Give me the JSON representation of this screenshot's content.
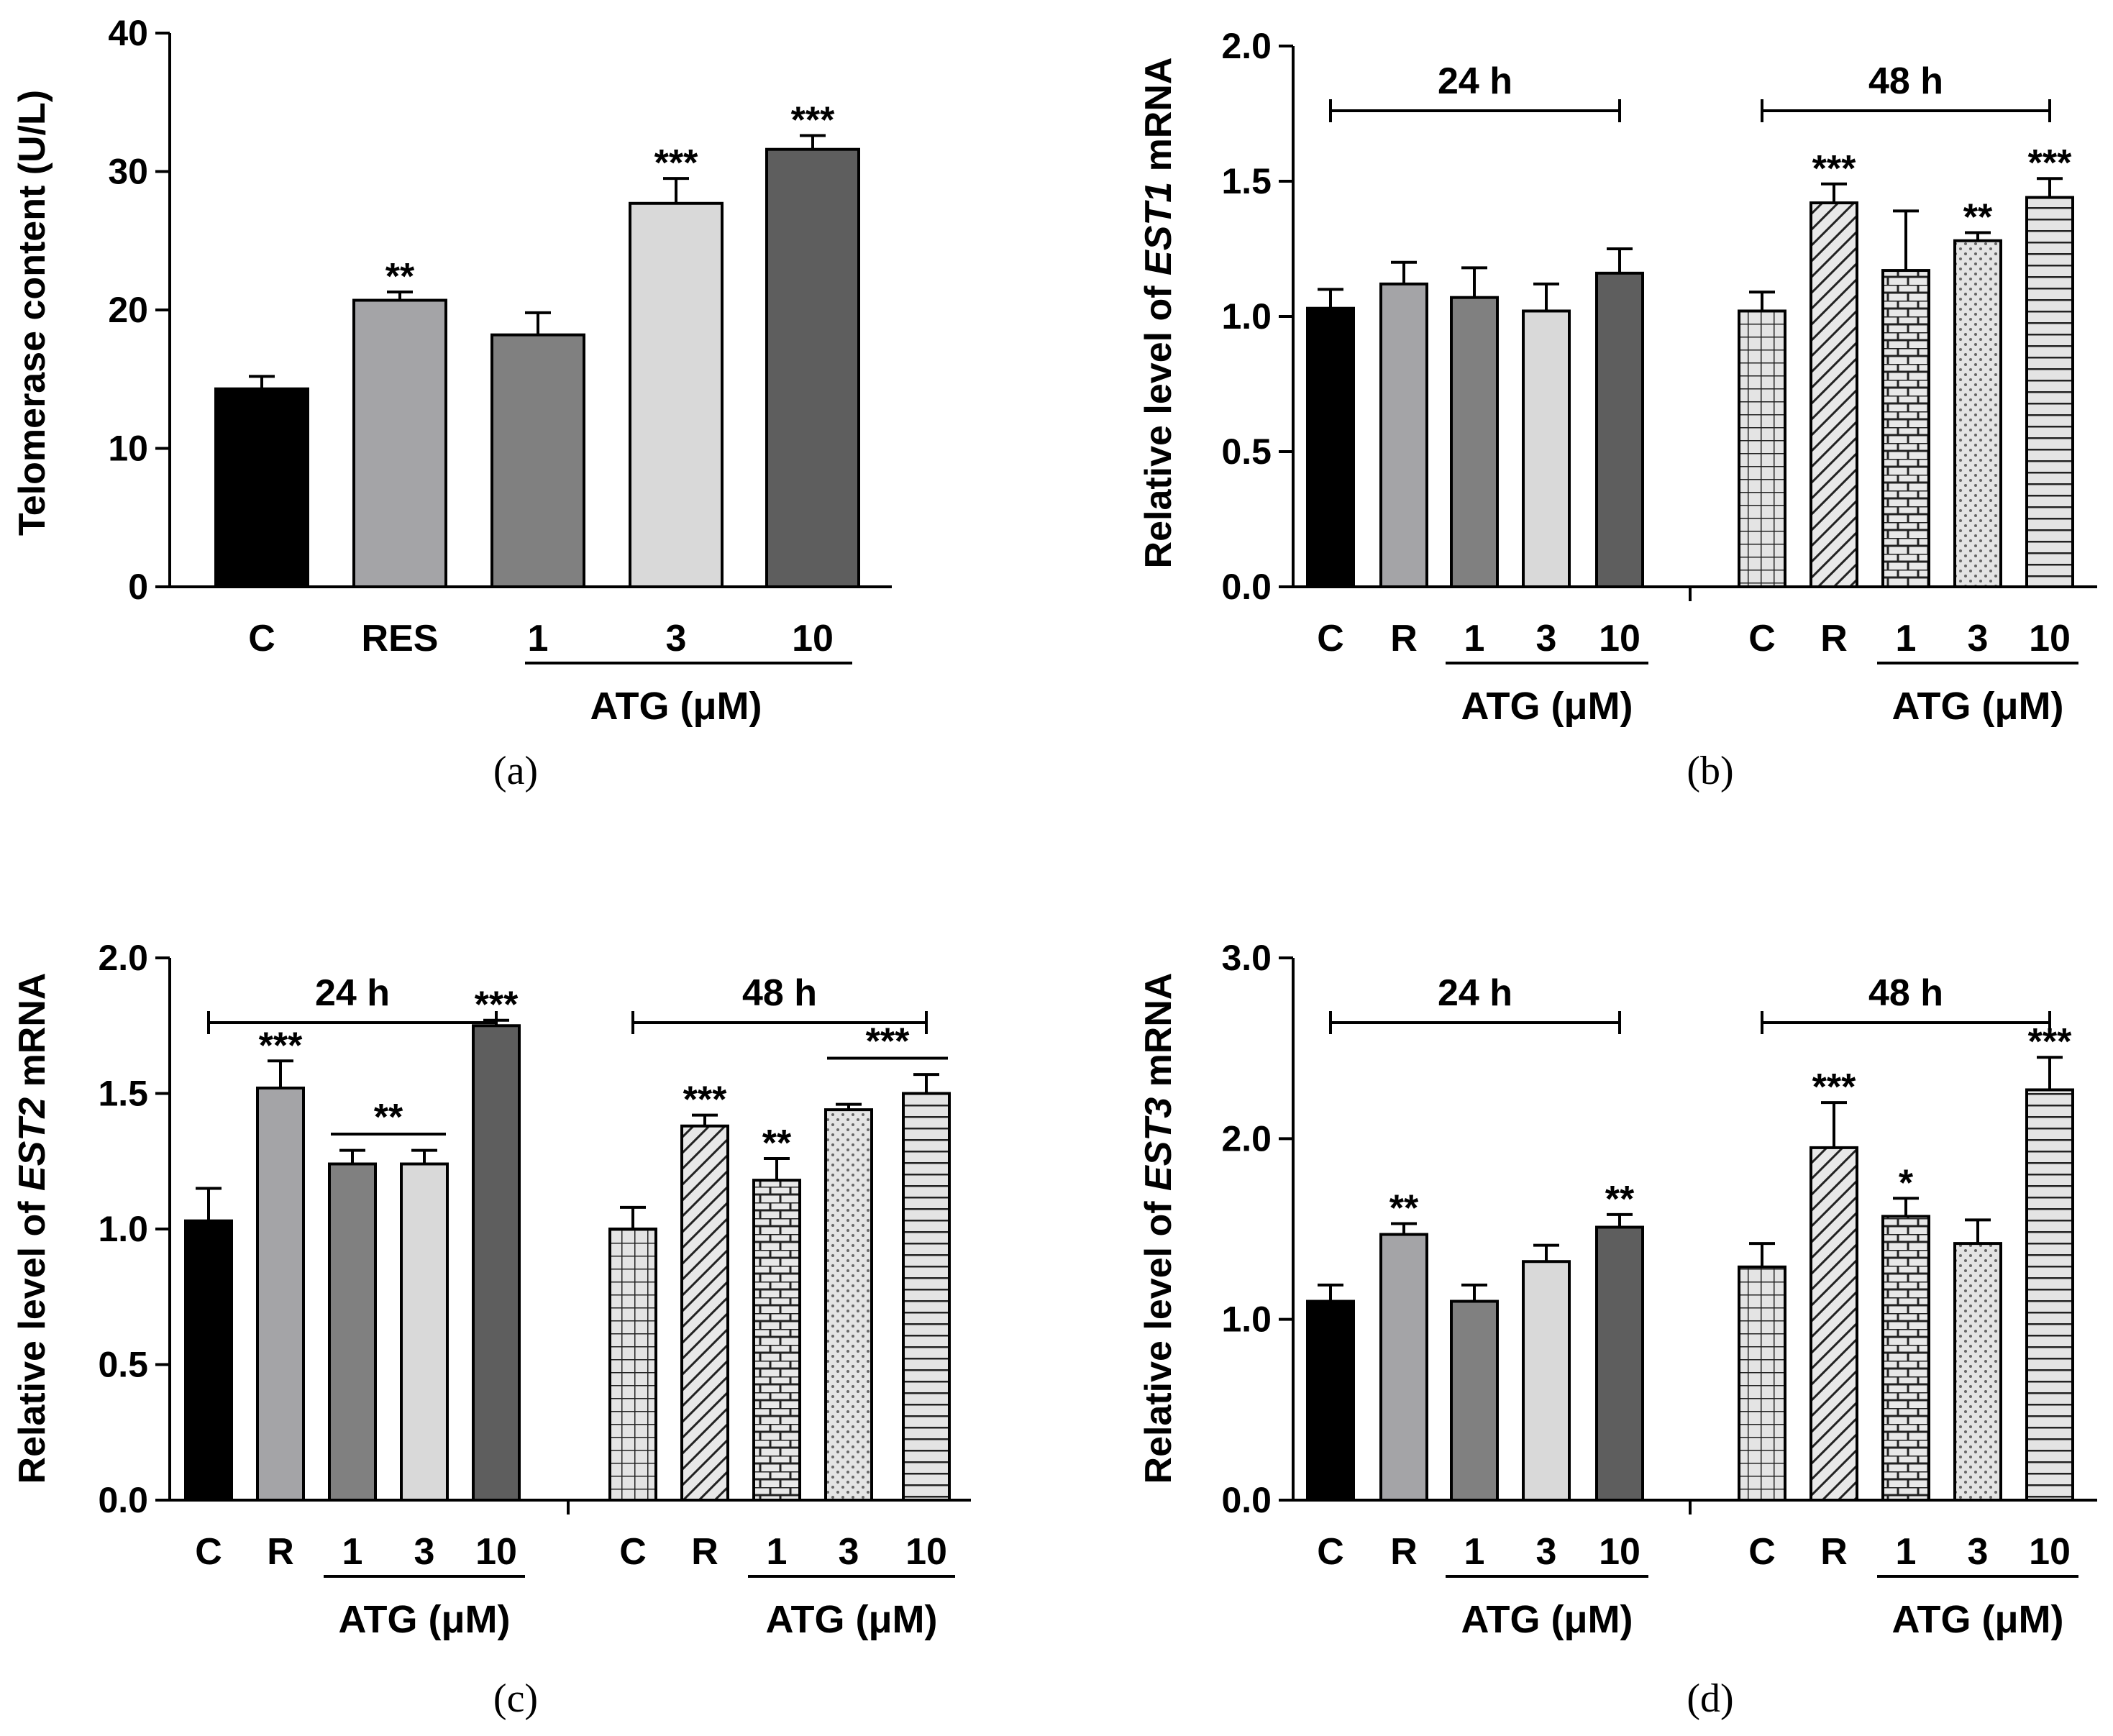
{
  "chart_data": [
    {
      "panel": "(a)",
      "type": "bar",
      "ylabel": "Telomerase content  (U/L)",
      "ylim": [
        0,
        40
      ],
      "yticks": [
        "0",
        "10",
        "20",
        "30",
        "40"
      ],
      "categories": [
        "C",
        "RES",
        "1",
        "3",
        "10"
      ],
      "values": [
        14.3,
        20.7,
        18.2,
        27.7,
        31.6
      ],
      "errors": [
        0.9,
        0.6,
        1.6,
        1.8,
        1.0
      ],
      "significance": [
        "",
        "**",
        "",
        "***",
        "***"
      ],
      "fills": [
        "#000000",
        "#a4a4a7",
        "#808080",
        "#d9d9d9",
        "#5e5e5e"
      ],
      "atg_label": "ATG (μM)"
    },
    {
      "panel": "(b)",
      "type": "bar",
      "ylabel_prefix": "Relative level of ",
      "ylabel_gene": "EST1",
      "ylabel_suffix": " mRNA",
      "ylim": [
        0,
        2.0
      ],
      "yticks": [
        "0.0",
        "0.5",
        "1.0",
        "1.5",
        "2.0"
      ],
      "groups": [
        {
          "label": "24 h",
          "categories": [
            "C",
            "R",
            "1",
            "3",
            "10"
          ],
          "values": [
            1.03,
            1.12,
            1.07,
            1.02,
            1.16
          ],
          "errors": [
            0.07,
            0.08,
            0.11,
            0.1,
            0.09
          ],
          "significance": [
            "",
            "",
            "",
            "",
            ""
          ],
          "atg_label": "ATG (μM)"
        },
        {
          "label": "48 h",
          "categories": [
            "C",
            "R",
            "1",
            "3",
            "10"
          ],
          "values": [
            1.02,
            1.42,
            1.17,
            1.28,
            1.44
          ],
          "errors": [
            0.07,
            0.07,
            0.22,
            0.03,
            0.07
          ],
          "significance": [
            "",
            "***",
            "",
            "**",
            "***"
          ],
          "atg_label": "ATG (μM)"
        }
      ]
    },
    {
      "panel": "(c)",
      "type": "bar",
      "ylabel_prefix": "Relative level of ",
      "ylabel_gene": "EST2",
      "ylabel_suffix": " mRNA",
      "ylim": [
        0,
        2.0
      ],
      "yticks": [
        "0.0",
        "0.5",
        "1.0",
        "1.5",
        "2.0"
      ],
      "bracket_sig_24h": "**",
      "bracket_sig_48h": "***",
      "groups": [
        {
          "label": "24 h",
          "categories": [
            "C",
            "R",
            "1",
            "3",
            "10"
          ],
          "values": [
            1.03,
            1.52,
            1.24,
            1.24,
            1.75
          ],
          "errors": [
            0.12,
            0.1,
            0.05,
            0.05,
            0.02
          ],
          "significance": [
            "",
            "***",
            "",
            "",
            "***"
          ],
          "atg_label": "ATG (μM)"
        },
        {
          "label": "48 h",
          "categories": [
            "C",
            "R",
            "1",
            "3",
            "10"
          ],
          "values": [
            1.0,
            1.38,
            1.18,
            1.44,
            1.5
          ],
          "errors": [
            0.08,
            0.04,
            0.08,
            0.02,
            0.07
          ],
          "significance": [
            "",
            "***",
            "**",
            "",
            ""
          ],
          "atg_label": "ATG (μM)"
        }
      ]
    },
    {
      "panel": "(d)",
      "type": "bar",
      "ylabel_prefix": "Relative level of ",
      "ylabel_gene": "EST3",
      "ylabel_suffix": " mRNA",
      "ylim": [
        0,
        3.0
      ],
      "yticks": [
        "0.0",
        "1.0",
        "2.0",
        "3.0"
      ],
      "groups": [
        {
          "label": "24 h",
          "categories": [
            "C",
            "R",
            "1",
            "3",
            "10"
          ],
          "values": [
            1.1,
            1.47,
            1.1,
            1.32,
            1.51
          ],
          "errors": [
            0.09,
            0.06,
            0.09,
            0.09,
            0.07
          ],
          "significance": [
            "",
            "**",
            "",
            "",
            "**"
          ],
          "atg_label": "ATG (μM)"
        },
        {
          "label": "48 h",
          "categories": [
            "C",
            "R",
            "1",
            "3",
            "10"
          ],
          "values": [
            1.29,
            1.95,
            1.57,
            1.42,
            2.27
          ],
          "errors": [
            0.13,
            0.25,
            0.1,
            0.13,
            0.18
          ],
          "significance": [
            "",
            "***",
            "*",
            "",
            "***"
          ],
          "atg_label": "ATG (μM)"
        }
      ]
    }
  ],
  "colors": {
    "c24": "#000000",
    "r24": "#a4a4a7",
    "atg1_24": "#808080",
    "atg3_24": "#d9d9d9",
    "atg10_24": "#5e5e5e",
    "pattern_fill": "#e4e4e4"
  }
}
